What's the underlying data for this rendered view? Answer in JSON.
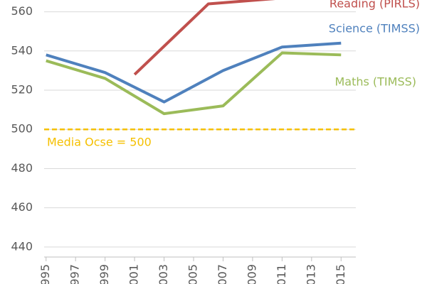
{
  "chart_data": {
    "type": "line",
    "x": [
      1995,
      1999,
      2003,
      2007,
      2011,
      2015
    ],
    "series": [
      {
        "name": "Reading (PIRLS)",
        "color": "#c0504d",
        "x": [
          2001,
          2006,
          2011
        ],
        "values": [
          528,
          564,
          567
        ]
      },
      {
        "name": "Science (TIMSS)",
        "color": "#4f81bd",
        "values": [
          538,
          529,
          514,
          530,
          542,
          544
        ]
      },
      {
        "name": "Maths (TIMSS)",
        "color": "#9bbb59",
        "values": [
          535,
          526,
          508,
          512,
          539,
          538
        ]
      }
    ],
    "reference": {
      "value": 500,
      "label": "Media Ocse = 500",
      "color": "#f5c000"
    },
    "xlim": [
      1994,
      2016
    ],
    "xticks": [
      1995,
      1997,
      1999,
      2001,
      2003,
      2005,
      2007,
      2009,
      2011,
      2013,
      2015
    ],
    "ylim": [
      432,
      566
    ],
    "yticks": [
      440,
      460,
      480,
      500,
      520,
      540,
      560
    ],
    "grid": true
  }
}
